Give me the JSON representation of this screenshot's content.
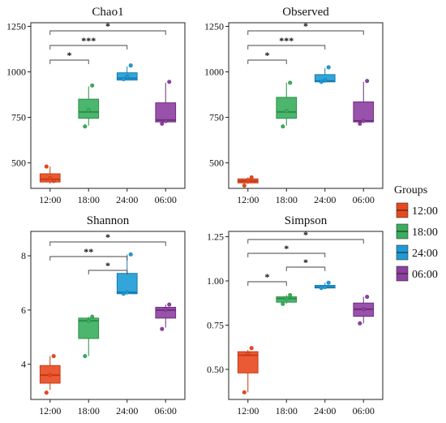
{
  "chart_data": [
    {
      "type": "box",
      "title": "Chao1",
      "categories": [
        "12:00",
        "18:00",
        "24:00",
        "06:00"
      ],
      "ylim": [
        360,
        1270
      ],
      "yticks": [
        500,
        750,
        1000,
        1250
      ],
      "boxes": [
        {
          "min": 385,
          "q1": 395,
          "median": 410,
          "q3": 440,
          "max": 480,
          "points": [
            480,
            415,
            400
          ]
        },
        {
          "min": 705,
          "q1": 745,
          "median": 780,
          "q3": 850,
          "max": 920,
          "points": [
            700,
            790,
            925
          ]
        },
        {
          "min": 955,
          "q1": 955,
          "median": 965,
          "q3": 995,
          "max": 1030,
          "points": [
            960,
            975,
            1035
          ]
        },
        {
          "min": 720,
          "q1": 725,
          "median": 735,
          "q3": 830,
          "max": 940,
          "points": [
            715,
            730,
            945
          ]
        }
      ],
      "significance": [
        {
          "from": "12:00",
          "to": "18:00",
          "label": "*"
        },
        {
          "from": "12:00",
          "to": "24:00",
          "label": "***"
        },
        {
          "from": "12:00",
          "to": "06:00",
          "label": "*"
        }
      ]
    },
    {
      "type": "box",
      "title": "Observed",
      "categories": [
        "12:00",
        "18:00",
        "24:00",
        "06:00"
      ],
      "ylim": [
        360,
        1270
      ],
      "yticks": [
        500,
        750,
        1000,
        1250
      ],
      "boxes": [
        {
          "min": 385,
          "q1": 390,
          "median": 400,
          "q3": 412,
          "max": 420,
          "points": [
            375,
            405,
            420
          ]
        },
        {
          "min": 705,
          "q1": 745,
          "median": 780,
          "q3": 860,
          "max": 940,
          "points": [
            700,
            785,
            940
          ]
        },
        {
          "min": 940,
          "q1": 945,
          "median": 950,
          "q3": 985,
          "max": 1020,
          "points": [
            945,
            955,
            1025
          ]
        },
        {
          "min": 720,
          "q1": 725,
          "median": 730,
          "q3": 835,
          "max": 945,
          "points": [
            715,
            730,
            950
          ]
        }
      ],
      "significance": [
        {
          "from": "12:00",
          "to": "18:00",
          "label": "*"
        },
        {
          "from": "12:00",
          "to": "24:00",
          "label": "***"
        },
        {
          "from": "12:00",
          "to": "06:00",
          "label": "*"
        }
      ]
    },
    {
      "type": "box",
      "title": "Shannon",
      "categories": [
        "12:00",
        "18:00",
        "24:00",
        "06:00"
      ],
      "ylim": [
        2.7,
        8.9
      ],
      "yticks": [
        4,
        6,
        8
      ],
      "boxes": [
        {
          "min": 3.05,
          "q1": 3.3,
          "median": 3.6,
          "q3": 3.95,
          "max": 4.3,
          "points": [
            2.95,
            3.6,
            4.3
          ]
        },
        {
          "min": 4.3,
          "q1": 4.95,
          "median": 5.6,
          "q3": 5.7,
          "max": 5.75,
          "points": [
            4.3,
            5.6,
            5.75
          ]
        },
        {
          "min": 6.6,
          "q1": 6.6,
          "median": 6.65,
          "q3": 7.35,
          "max": 8.05,
          "points": [
            6.6,
            6.65,
            8.05
          ]
        },
        {
          "min": 5.35,
          "q1": 5.7,
          "median": 6.0,
          "q3": 6.1,
          "max": 6.2,
          "points": [
            5.3,
            6.0,
            6.2
          ]
        }
      ],
      "significance": [
        {
          "from": "18:00",
          "to": "24:00",
          "label": "*"
        },
        {
          "from": "12:00",
          "to": "24:00",
          "label": "**"
        },
        {
          "from": "12:00",
          "to": "06:00",
          "label": "*"
        }
      ]
    },
    {
      "type": "box",
      "title": "Simpson",
      "categories": [
        "12:00",
        "18:00",
        "24:00",
        "06:00"
      ],
      "ylim": [
        0.33,
        1.28
      ],
      "yticks": [
        0.5,
        0.75,
        1.0,
        1.25
      ],
      "ytick_labels": [
        "0.50",
        "0.75",
        "1.00",
        "1.25"
      ],
      "boxes": [
        {
          "min": 0.37,
          "q1": 0.48,
          "median": 0.58,
          "q3": 0.6,
          "max": 0.61,
          "points": [
            0.37,
            0.59,
            0.62
          ]
        },
        {
          "min": 0.87,
          "q1": 0.88,
          "median": 0.9,
          "q3": 0.91,
          "max": 0.92,
          "points": [
            0.87,
            0.9,
            0.92
          ]
        },
        {
          "min": 0.96,
          "q1": 0.96,
          "median": 0.965,
          "q3": 0.975,
          "max": 0.99,
          "points": [
            0.96,
            0.965,
            0.99
          ]
        },
        {
          "min": 0.76,
          "q1": 0.8,
          "median": 0.84,
          "q3": 0.875,
          "max": 0.91,
          "points": [
            0.76,
            0.84,
            0.91
          ]
        }
      ],
      "significance": [
        {
          "from": "12:00",
          "to": "18:00",
          "label": "*"
        },
        {
          "from": "18:00",
          "to": "24:00",
          "label": "*"
        },
        {
          "from": "12:00",
          "to": "24:00",
          "label": "*"
        },
        {
          "from": "12:00",
          "to": "06:00",
          "label": "*"
        }
      ]
    }
  ],
  "legend": {
    "title": "Groups",
    "items": [
      {
        "label": "12:00",
        "color": "#E8481E"
      },
      {
        "label": "18:00",
        "color": "#3AAE5E"
      },
      {
        "label": "24:00",
        "color": "#1E9BD7"
      },
      {
        "label": "06:00",
        "color": "#8E3FA0"
      }
    ]
  },
  "colors": {
    "12:00": {
      "fill": "#E8481E",
      "line": "#C63A14"
    },
    "18:00": {
      "fill": "#3AAE5E",
      "line": "#2A8E47"
    },
    "24:00": {
      "fill": "#1E9BD7",
      "line": "#157CB0"
    },
    "06:00": {
      "fill": "#8E3FA0",
      "line": "#6E2E80"
    }
  }
}
